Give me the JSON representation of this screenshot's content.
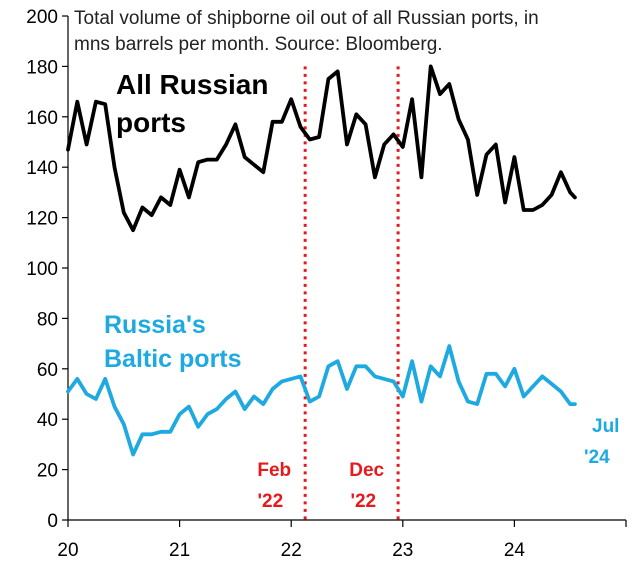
{
  "chart_data": {
    "type": "line",
    "title": "Total volume of shipborne oil out of all Russian ports, in mns barrels per month. Source: Bloomberg.",
    "title_lines": [
      "Total volume of shipborne oil out of all Russian ports, in",
      "mns barrels per month. Source: Bloomberg."
    ],
    "xlabel": "",
    "ylabel": "",
    "xlim": [
      2020.0,
      2025.0
    ],
    "ylim": [
      0,
      200
    ],
    "y_ticks": [
      "0",
      "20",
      "40",
      "60",
      "80",
      "100",
      "120",
      "140",
      "160",
      "180",
      "200"
    ],
    "x_ticks": [
      {
        "value": 2020,
        "label": "20"
      },
      {
        "value": 2021,
        "label": "21"
      },
      {
        "value": 2022,
        "label": "22"
      },
      {
        "value": 2023,
        "label": "23"
      },
      {
        "value": 2024,
        "label": "24"
      }
    ],
    "grid": false,
    "series": [
      {
        "name": "All Russian ports",
        "label_lines": [
          "All Russian",
          "ports"
        ],
        "color": "#000000",
        "x": [
          2020.0,
          2020.083,
          2020.167,
          2020.25,
          2020.333,
          2020.417,
          2020.5,
          2020.583,
          2020.667,
          2020.75,
          2020.833,
          2020.917,
          2021.0,
          2021.083,
          2021.167,
          2021.25,
          2021.333,
          2021.417,
          2021.5,
          2021.583,
          2021.667,
          2021.75,
          2021.833,
          2021.917,
          2022.0,
          2022.083,
          2022.167,
          2022.25,
          2022.333,
          2022.417,
          2022.5,
          2022.583,
          2022.667,
          2022.75,
          2022.833,
          2022.917,
          2023.0,
          2023.083,
          2023.167,
          2023.25,
          2023.333,
          2023.417,
          2023.5,
          2023.583,
          2023.667,
          2023.75,
          2023.833,
          2023.917,
          2024.0,
          2024.083,
          2024.167,
          2024.25,
          2024.333,
          2024.417,
          2024.5
        ],
        "values": [
          147,
          166,
          149,
          166,
          165,
          140,
          122,
          115,
          124,
          121,
          128,
          125,
          139,
          128,
          142,
          143,
          143,
          149,
          157,
          144,
          141,
          138,
          158,
          158,
          167,
          156,
          151,
          152,
          175,
          178,
          149,
          161,
          157,
          136,
          149,
          153,
          148,
          167,
          136,
          180,
          169,
          173,
          159,
          151,
          129,
          145,
          149,
          126,
          144,
          123,
          123,
          125,
          129,
          138,
          130
        ],
        "end": {
          "x": 2024.542,
          "y": 128
        }
      },
      {
        "name": "Russia's Baltic ports",
        "label_lines": [
          "Russia's",
          "Baltic ports"
        ],
        "color": "#1fa9e1",
        "x": [
          2020.0,
          2020.083,
          2020.167,
          2020.25,
          2020.333,
          2020.417,
          2020.5,
          2020.583,
          2020.667,
          2020.75,
          2020.833,
          2020.917,
          2021.0,
          2021.083,
          2021.167,
          2021.25,
          2021.333,
          2021.417,
          2021.5,
          2021.583,
          2021.667,
          2021.75,
          2021.833,
          2021.917,
          2022.0,
          2022.083,
          2022.167,
          2022.25,
          2022.333,
          2022.417,
          2022.5,
          2022.583,
          2022.667,
          2022.75,
          2022.833,
          2022.917,
          2023.0,
          2023.083,
          2023.167,
          2023.25,
          2023.333,
          2023.417,
          2023.5,
          2023.583,
          2023.667,
          2023.75,
          2023.833,
          2023.917,
          2024.0,
          2024.083,
          2024.167,
          2024.25,
          2024.333,
          2024.417,
          2024.5
        ],
        "values": [
          51,
          56,
          50,
          48,
          56,
          45,
          38,
          26,
          34,
          34,
          35,
          35,
          42,
          45,
          37,
          42,
          44,
          48,
          51,
          44,
          49,
          46,
          52,
          55,
          56,
          57,
          47,
          49,
          61,
          63,
          52,
          61,
          61,
          57,
          56,
          55,
          49,
          63,
          47,
          61,
          57,
          69,
          55,
          47,
          46,
          58,
          58,
          53,
          60,
          49,
          53,
          57,
          54,
          51,
          46
        ],
        "end": {
          "x": 2024.542,
          "y": 46
        },
        "end_label_lines": [
          "Jul",
          "'24"
        ]
      }
    ],
    "annotations": [
      {
        "name": "feb-22",
        "x": 2022.125,
        "label_lines": [
          "Feb",
          "'22"
        ],
        "color": "#e41a1c",
        "style": "dotted"
      },
      {
        "name": "dec-22",
        "x": 2022.958,
        "label_lines": [
          "Dec",
          "'22"
        ],
        "color": "#e41a1c",
        "style": "dotted"
      }
    ]
  }
}
